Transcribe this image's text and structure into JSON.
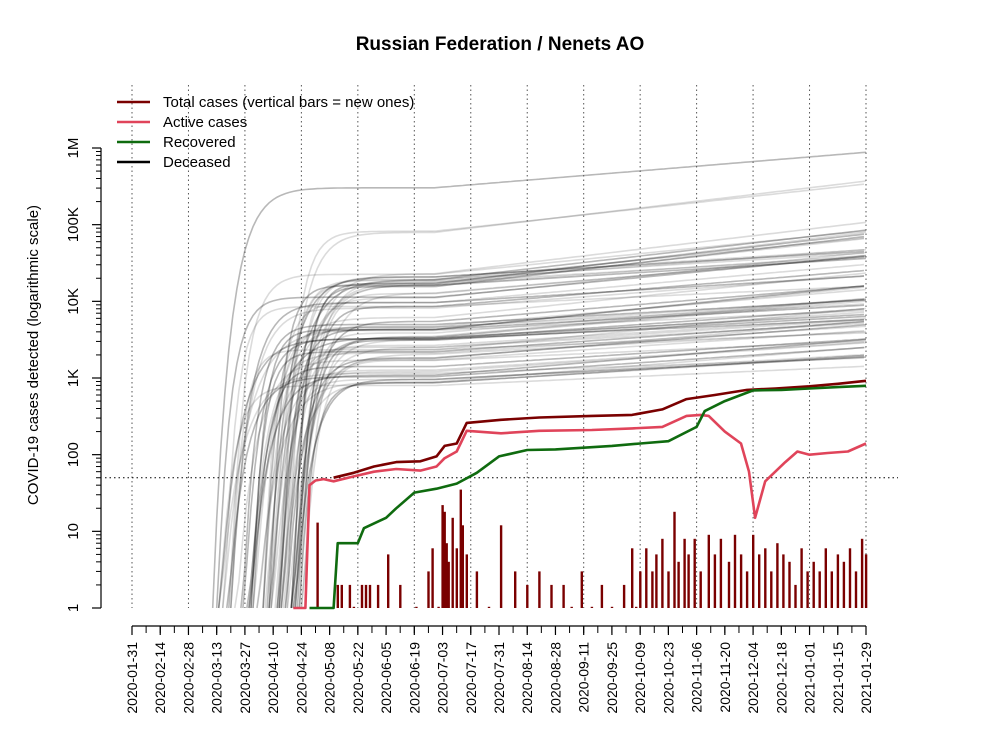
{
  "chart_data": {
    "type": "line",
    "title": "Russian Federation / Nenets AO",
    "ylabel": "COVID-19 cases detected (logarithmic scale)",
    "xlabel": "",
    "yscale": "log",
    "ylim": [
      1,
      1000000
    ],
    "xlim": [
      "2020-01-31",
      "2021-01-29"
    ],
    "y_ticks": [
      {
        "value": 1,
        "label": "1"
      },
      {
        "value": 10,
        "label": "10"
      },
      {
        "value": 100,
        "label": "100"
      },
      {
        "value": 1000,
        "label": "1K"
      },
      {
        "value": 10000,
        "label": "10K"
      },
      {
        "value": 100000,
        "label": "100K"
      },
      {
        "value": 1000000,
        "label": "1M"
      }
    ],
    "x_ticks": [
      "2020-01-31",
      "2020-02-14",
      "2020-02-28",
      "2020-03-13",
      "2020-03-27",
      "2020-04-10",
      "2020-04-24",
      "2020-05-08",
      "2020-05-22",
      "2020-06-05",
      "2020-06-19",
      "2020-07-03",
      "2020-07-17",
      "2020-07-31",
      "2020-08-14",
      "2020-08-28",
      "2020-09-11",
      "2020-09-25",
      "2020-10-09",
      "2020-10-23",
      "2020-11-06",
      "2020-11-20",
      "2020-12-04",
      "2020-12-18",
      "2021-01-01",
      "2021-01-15",
      "2021-01-29"
    ],
    "threshold_line": 50,
    "grid": "vertical dotted at every 14 days",
    "legend_position": "top-left",
    "legend": [
      {
        "label": "Total cases (vertical bars = new ones)",
        "color": "#7a0000"
      },
      {
        "label": "Active cases",
        "color": "#e0445a"
      },
      {
        "label": "Recovered",
        "color": "#0f6b0f"
      },
      {
        "label": "Deceased",
        "color": "#000000"
      }
    ],
    "series": [
      {
        "name": "Total cases (vertical bars = new ones)",
        "color": "#7a0000",
        "points": [
          [
            "2020-05-10",
            50
          ],
          [
            "2020-05-20",
            58
          ],
          [
            "2020-05-30",
            70
          ],
          [
            "2020-06-10",
            80
          ],
          [
            "2020-06-22",
            82
          ],
          [
            "2020-06-30",
            95
          ],
          [
            "2020-07-04",
            130
          ],
          [
            "2020-07-10",
            140
          ],
          [
            "2020-07-15",
            260
          ],
          [
            "2020-08-01",
            285
          ],
          [
            "2020-08-20",
            305
          ],
          [
            "2020-09-15",
            320
          ],
          [
            "2020-10-05",
            330
          ],
          [
            "2020-10-20",
            390
          ],
          [
            "2020-11-01",
            530
          ],
          [
            "2020-11-15",
            600
          ],
          [
            "2020-12-01",
            700
          ],
          [
            "2020-12-15",
            730
          ],
          [
            "2021-01-01",
            780
          ],
          [
            "2021-01-15",
            840
          ],
          [
            "2021-01-29",
            920
          ]
        ]
      },
      {
        "name": "Active cases",
        "color": "#e0445a",
        "points": [
          [
            "2020-04-20",
            1
          ],
          [
            "2020-04-26",
            1
          ],
          [
            "2020-04-28",
            40
          ],
          [
            "2020-05-01",
            46
          ],
          [
            "2020-05-05",
            48
          ],
          [
            "2020-05-10",
            45
          ],
          [
            "2020-05-20",
            52
          ],
          [
            "2020-05-30",
            60
          ],
          [
            "2020-06-10",
            65
          ],
          [
            "2020-06-22",
            62
          ],
          [
            "2020-06-30",
            70
          ],
          [
            "2020-07-04",
            90
          ],
          [
            "2020-07-10",
            110
          ],
          [
            "2020-07-15",
            205
          ],
          [
            "2020-08-01",
            190
          ],
          [
            "2020-08-20",
            205
          ],
          [
            "2020-09-15",
            210
          ],
          [
            "2020-10-05",
            220
          ],
          [
            "2020-10-20",
            230
          ],
          [
            "2020-11-01",
            320
          ],
          [
            "2020-11-08",
            330
          ],
          [
            "2020-11-12",
            320
          ],
          [
            "2020-11-20",
            200
          ],
          [
            "2020-11-28",
            140
          ],
          [
            "2020-12-02",
            60
          ],
          [
            "2020-12-05",
            15
          ],
          [
            "2020-12-10",
            45
          ],
          [
            "2020-12-20",
            80
          ],
          [
            "2020-12-26",
            110
          ],
          [
            "2021-01-01",
            100
          ],
          [
            "2021-01-10",
            105
          ],
          [
            "2021-01-20",
            110
          ],
          [
            "2021-01-29",
            140
          ]
        ]
      },
      {
        "name": "Recovered",
        "color": "#0f6b0f",
        "points": [
          [
            "2020-04-28",
            1
          ],
          [
            "2020-05-10",
            1
          ],
          [
            "2020-05-12",
            7
          ],
          [
            "2020-05-22",
            7
          ],
          [
            "2020-05-25",
            11
          ],
          [
            "2020-06-05",
            15
          ],
          [
            "2020-06-10",
            20
          ],
          [
            "2020-06-19",
            32
          ],
          [
            "2020-06-30",
            36
          ],
          [
            "2020-07-10",
            42
          ],
          [
            "2020-07-20",
            58
          ],
          [
            "2020-07-31",
            95
          ],
          [
            "2020-08-14",
            115
          ],
          [
            "2020-08-28",
            117
          ],
          [
            "2020-09-25",
            130
          ],
          [
            "2020-10-09",
            140
          ],
          [
            "2020-10-23",
            150
          ],
          [
            "2020-11-06",
            230
          ],
          [
            "2020-11-10",
            370
          ],
          [
            "2020-11-20",
            500
          ],
          [
            "2020-12-04",
            690
          ],
          [
            "2020-12-18",
            700
          ],
          [
            "2021-01-01",
            730
          ],
          [
            "2021-01-15",
            760
          ],
          [
            "2021-01-29",
            790
          ]
        ]
      },
      {
        "name": "Deceased",
        "color": "#000000",
        "points": []
      }
    ],
    "new_cases_bars": [
      [
        "2020-05-02",
        13
      ],
      [
        "2020-05-12",
        2
      ],
      [
        "2020-05-14",
        2
      ],
      [
        "2020-05-18",
        2
      ],
      [
        "2020-05-20",
        1
      ],
      [
        "2020-05-24",
        2
      ],
      [
        "2020-05-26",
        2
      ],
      [
        "2020-05-28",
        2
      ],
      [
        "2020-06-01",
        2
      ],
      [
        "2020-06-06",
        5
      ],
      [
        "2020-06-12",
        2
      ],
      [
        "2020-06-20",
        1
      ],
      [
        "2020-06-26",
        3
      ],
      [
        "2020-06-28",
        6
      ],
      [
        "2020-07-01",
        1
      ],
      [
        "2020-07-03",
        22
      ],
      [
        "2020-07-04",
        18
      ],
      [
        "2020-07-05",
        7
      ],
      [
        "2020-07-06",
        4
      ],
      [
        "2020-07-08",
        15
      ],
      [
        "2020-07-10",
        6
      ],
      [
        "2020-07-12",
        35
      ],
      [
        "2020-07-13",
        12
      ],
      [
        "2020-07-15",
        5
      ],
      [
        "2020-07-20",
        3
      ],
      [
        "2020-07-26",
        1
      ],
      [
        "2020-08-01",
        12
      ],
      [
        "2020-08-08",
        3
      ],
      [
        "2020-08-14",
        2
      ],
      [
        "2020-08-20",
        3
      ],
      [
        "2020-08-26",
        2
      ],
      [
        "2020-09-01",
        2
      ],
      [
        "2020-09-05",
        1
      ],
      [
        "2020-09-10",
        3
      ],
      [
        "2020-09-15",
        1
      ],
      [
        "2020-09-20",
        2
      ],
      [
        "2020-09-25",
        1
      ],
      [
        "2020-10-01",
        2
      ],
      [
        "2020-10-05",
        6
      ],
      [
        "2020-10-07",
        1
      ],
      [
        "2020-10-09",
        3
      ],
      [
        "2020-10-12",
        6
      ],
      [
        "2020-10-15",
        3
      ],
      [
        "2020-10-17",
        5
      ],
      [
        "2020-10-20",
        8
      ],
      [
        "2020-10-23",
        3
      ],
      [
        "2020-10-26",
        18
      ],
      [
        "2020-10-28",
        4
      ],
      [
        "2020-10-31",
        8
      ],
      [
        "2020-11-02",
        5
      ],
      [
        "2020-11-05",
        8
      ],
      [
        "2020-11-08",
        3
      ],
      [
        "2020-11-12",
        9
      ],
      [
        "2020-11-15",
        5
      ],
      [
        "2020-11-18",
        8
      ],
      [
        "2020-11-22",
        4
      ],
      [
        "2020-11-25",
        9
      ],
      [
        "2020-11-28",
        5
      ],
      [
        "2020-12-01",
        3
      ],
      [
        "2020-12-04",
        9
      ],
      [
        "2020-12-07",
        5
      ],
      [
        "2020-12-10",
        6
      ],
      [
        "2020-12-13",
        3
      ],
      [
        "2020-12-16",
        7
      ],
      [
        "2020-12-19",
        5
      ],
      [
        "2020-12-22",
        4
      ],
      [
        "2020-12-25",
        2
      ],
      [
        "2020-12-28",
        6
      ],
      [
        "2020-12-31",
        3
      ],
      [
        "2021-01-03",
        4
      ],
      [
        "2021-01-06",
        3
      ],
      [
        "2021-01-09",
        6
      ],
      [
        "2021-01-12",
        3
      ],
      [
        "2021-01-15",
        5
      ],
      [
        "2021-01-18",
        4
      ],
      [
        "2021-01-21",
        6
      ],
      [
        "2021-01-24",
        3
      ],
      [
        "2021-01-27",
        8
      ],
      [
        "2021-01-29",
        5
      ]
    ]
  }
}
